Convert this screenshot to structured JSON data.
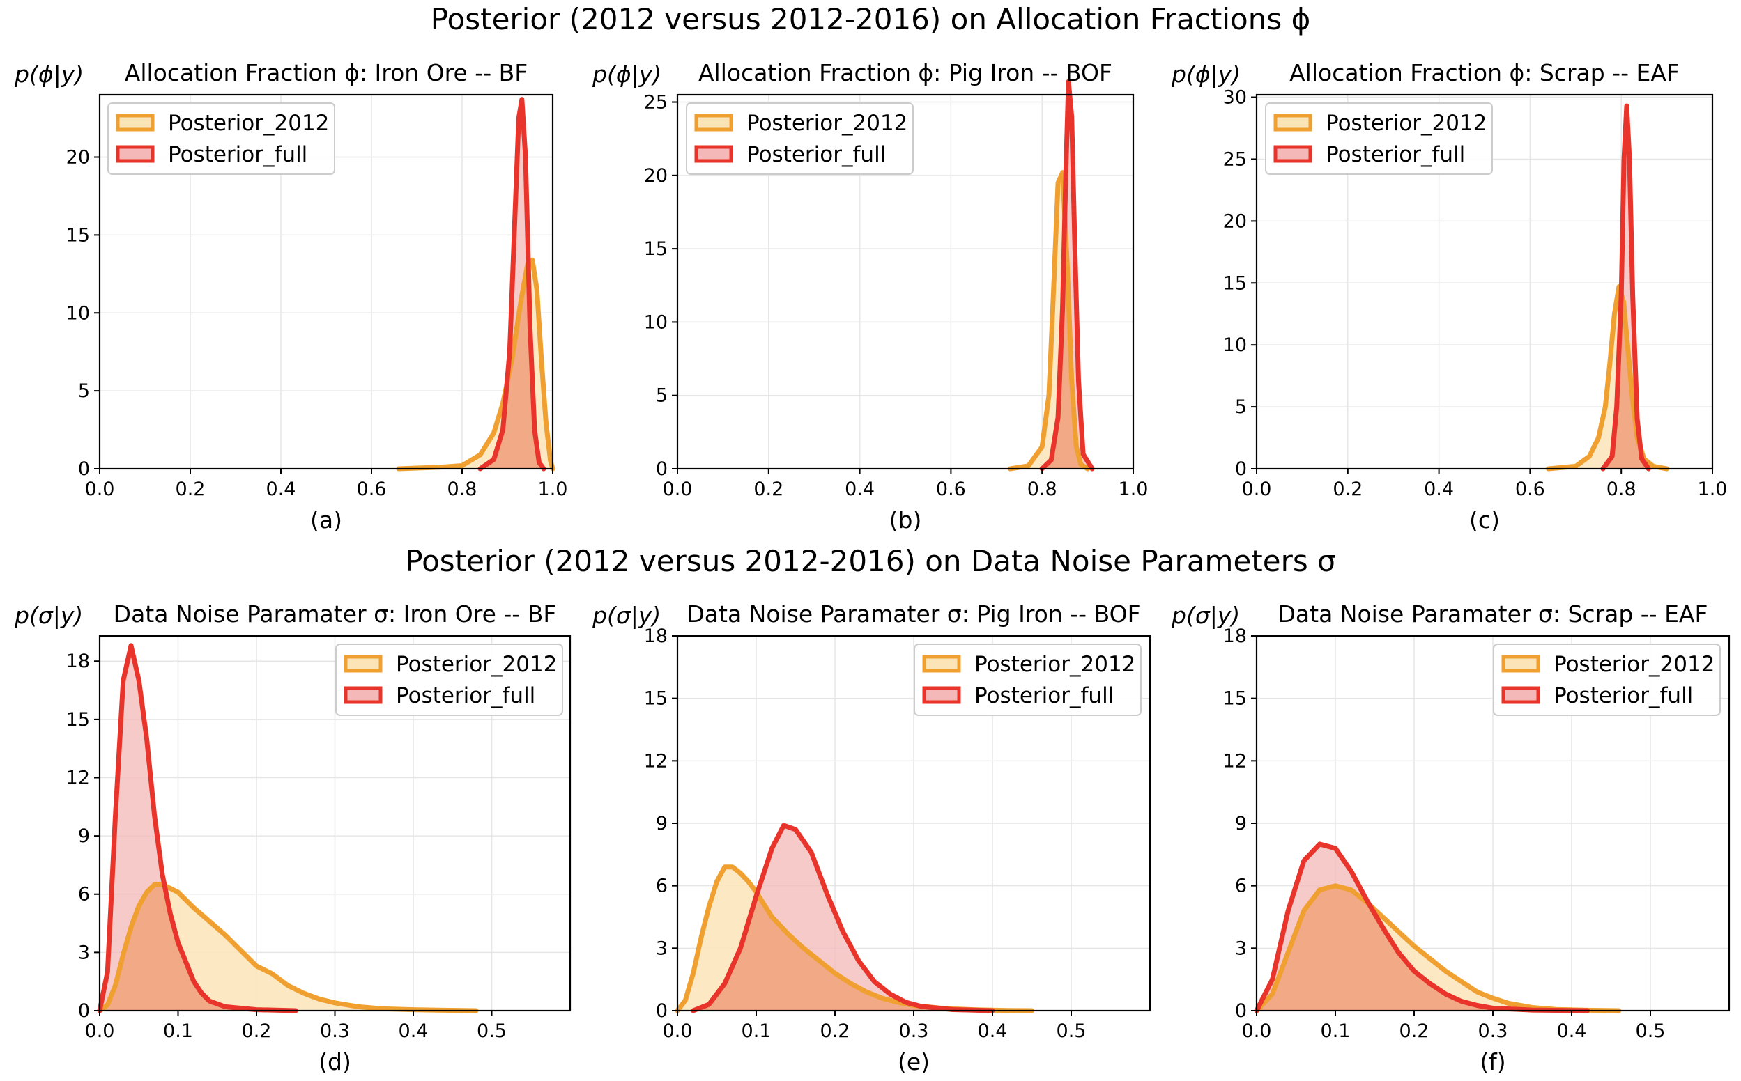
{
  "suptitles": {
    "top": "Posterior (2012 versus 2012-2016) on Allocation Fractions ϕ",
    "bottom": "Posterior (2012 versus 2012-2016) on Data Noise Parameters σ"
  },
  "colors": {
    "posterior_2012_line": "#f0a030",
    "posterior_2012_fill": "#fbe5b8",
    "posterior_full_line": "#e8342a",
    "posterior_full_fill": "#f4b8b8",
    "overlap_fill": "#f0a883"
  },
  "chart_data": [
    {
      "type": "area",
      "panel": "a",
      "title": "Allocation Fraction ϕ: Iron Ore -- BF",
      "ylabel": "p(ϕ|y)",
      "caption": "(a)",
      "xlim": [
        0.0,
        1.0
      ],
      "ylim": [
        0,
        24
      ],
      "xticks": [
        0.0,
        0.2,
        0.4,
        0.6,
        0.8,
        1.0
      ],
      "yticks": [
        0,
        5,
        10,
        15,
        20
      ],
      "xtick_labels": [
        "0.0",
        "0.2",
        "0.4",
        "0.6",
        "0.8",
        "1.0"
      ],
      "ytick_labels": [
        "0",
        "5",
        "10",
        "15",
        "20"
      ],
      "legend": "upper-left",
      "series": [
        {
          "name": "Posterior_2012",
          "x": [
            0.66,
            0.75,
            0.8,
            0.84,
            0.87,
            0.89,
            0.91,
            0.93,
            0.945,
            0.955,
            0.965,
            0.975,
            0.985,
            0.995,
            1.0
          ],
          "y": [
            0,
            0.1,
            0.2,
            0.9,
            2.3,
            4.2,
            7.0,
            10.8,
            13.2,
            13.4,
            11.5,
            7.0,
            3.0,
            0.5,
            0
          ]
        },
        {
          "name": "Posterior_full",
          "x": [
            0.84,
            0.87,
            0.89,
            0.905,
            0.915,
            0.925,
            0.932,
            0.94,
            0.95,
            0.96,
            0.97,
            0.98
          ],
          "y": [
            0,
            0.6,
            2.5,
            7.5,
            15.0,
            22.5,
            23.7,
            20.0,
            9.0,
            2.5,
            0.4,
            0
          ]
        }
      ]
    },
    {
      "type": "area",
      "panel": "b",
      "title": "Allocation Fraction ϕ: Pig Iron -- BOF",
      "ylabel": "p(ϕ|y)",
      "caption": "(b)",
      "xlim": [
        0.0,
        1.0
      ],
      "ylim": [
        0,
        25.5
      ],
      "xticks": [
        0.0,
        0.2,
        0.4,
        0.6,
        0.8,
        1.0
      ],
      "yticks": [
        0,
        5,
        10,
        15,
        20,
        25
      ],
      "xtick_labels": [
        "0.0",
        "0.2",
        "0.4",
        "0.6",
        "0.8",
        "1.0"
      ],
      "ytick_labels": [
        "0",
        "5",
        "10",
        "15",
        "20",
        "25"
      ],
      "legend": "upper-left",
      "series": [
        {
          "name": "Posterior_2012",
          "x": [
            0.73,
            0.77,
            0.8,
            0.815,
            0.825,
            0.835,
            0.845,
            0.855,
            0.865,
            0.875,
            0.885,
            0.9
          ],
          "y": [
            0,
            0.2,
            1.5,
            5.0,
            12.0,
            19.5,
            20.2,
            14.0,
            6.0,
            1.5,
            0.3,
            0
          ]
        },
        {
          "name": "Posterior_full",
          "x": [
            0.8,
            0.82,
            0.835,
            0.845,
            0.852,
            0.858,
            0.865,
            0.872,
            0.88,
            0.89,
            0.91
          ],
          "y": [
            0,
            0.6,
            3.5,
            11.0,
            20.0,
            26.4,
            24.0,
            15.0,
            6.0,
            1.0,
            0
          ]
        }
      ]
    },
    {
      "type": "area",
      "panel": "c",
      "title": "Allocation Fraction ϕ: Scrap -- EAF",
      "ylabel": "p(ϕ|y)",
      "caption": "(c)",
      "xlim": [
        0.0,
        1.0
      ],
      "ylim": [
        0,
        30.2
      ],
      "xticks": [
        0.0,
        0.2,
        0.4,
        0.6,
        0.8,
        1.0
      ],
      "yticks": [
        0,
        5,
        10,
        15,
        20,
        25,
        30
      ],
      "xtick_labels": [
        "0.0",
        "0.2",
        "0.4",
        "0.6",
        "0.8",
        "1.0"
      ],
      "ytick_labels": [
        "0",
        "5",
        "10",
        "15",
        "20",
        "25",
        "30"
      ],
      "legend": "upper-left",
      "series": [
        {
          "name": "Posterior_2012",
          "x": [
            0.64,
            0.7,
            0.73,
            0.75,
            0.765,
            0.775,
            0.785,
            0.795,
            0.805,
            0.815,
            0.825,
            0.835,
            0.85,
            0.87,
            0.9
          ],
          "y": [
            0,
            0.2,
            1.0,
            2.5,
            5.0,
            8.5,
            12.5,
            14.7,
            13.5,
            9.5,
            5.5,
            2.5,
            0.8,
            0.2,
            0
          ]
        },
        {
          "name": "Posterior_full",
          "x": [
            0.76,
            0.78,
            0.79,
            0.8,
            0.806,
            0.812,
            0.818,
            0.825,
            0.835,
            0.845,
            0.86
          ],
          "y": [
            0,
            1.0,
            5.0,
            14.0,
            25.0,
            29.3,
            25.0,
            14.0,
            4.0,
            0.8,
            0
          ]
        }
      ]
    },
    {
      "type": "area",
      "panel": "d",
      "title": "Data Noise Paramater σ: Iron Ore -- BF",
      "ylabel": "p(σ|y)",
      "caption": "(d)",
      "xlim": [
        0.0,
        0.6
      ],
      "ylim": [
        0,
        19.3
      ],
      "xticks": [
        0.0,
        0.1,
        0.2,
        0.3,
        0.4,
        0.5
      ],
      "yticks": [
        0,
        3,
        6,
        9,
        12,
        15,
        18
      ],
      "xtick_labels": [
        "0.0",
        "0.1",
        "0.2",
        "0.3",
        "0.4",
        "0.5"
      ],
      "ytick_labels": [
        "0",
        "3",
        "6",
        "9",
        "12",
        "15",
        "18"
      ],
      "legend": "upper-right",
      "series": [
        {
          "name": "Posterior_2012",
          "x": [
            0.0,
            0.01,
            0.02,
            0.03,
            0.04,
            0.05,
            0.06,
            0.07,
            0.08,
            0.1,
            0.12,
            0.14,
            0.16,
            0.18,
            0.2,
            0.22,
            0.24,
            0.26,
            0.28,
            0.3,
            0.33,
            0.36,
            0.4,
            0.44,
            0.48
          ],
          "y": [
            0,
            0.3,
            1.3,
            2.9,
            4.3,
            5.4,
            6.1,
            6.5,
            6.5,
            6.1,
            5.3,
            4.6,
            3.9,
            3.1,
            2.3,
            1.9,
            1.3,
            0.9,
            0.6,
            0.4,
            0.2,
            0.1,
            0.05,
            0.02,
            0
          ]
        },
        {
          "name": "Posterior_full",
          "x": [
            0.0,
            0.01,
            0.02,
            0.03,
            0.04,
            0.05,
            0.06,
            0.07,
            0.08,
            0.09,
            0.1,
            0.11,
            0.12,
            0.13,
            0.14,
            0.16,
            0.2,
            0.25
          ],
          "y": [
            0,
            2.0,
            10.0,
            17.0,
            18.8,
            17.0,
            14.0,
            10.0,
            7.0,
            5.0,
            3.5,
            2.5,
            1.5,
            0.9,
            0.5,
            0.2,
            0.05,
            0
          ]
        }
      ]
    },
    {
      "type": "area",
      "panel": "e",
      "title": "Data Noise Paramater σ: Pig Iron -- BOF",
      "ylabel": "p(σ|y)",
      "caption": "(e)",
      "xlim": [
        0.0,
        0.6
      ],
      "ylim": [
        0,
        18
      ],
      "xticks": [
        0.0,
        0.1,
        0.2,
        0.3,
        0.4,
        0.5
      ],
      "yticks": [
        0,
        3,
        6,
        9,
        12,
        15,
        18
      ],
      "xtick_labels": [
        "0.0",
        "0.1",
        "0.2",
        "0.3",
        "0.4",
        "0.5"
      ],
      "ytick_labels": [
        "0",
        "3",
        "6",
        "9",
        "12",
        "15",
        "18"
      ],
      "legend": "upper-right",
      "series": [
        {
          "name": "Posterior_2012",
          "x": [
            0.0,
            0.01,
            0.02,
            0.03,
            0.04,
            0.05,
            0.06,
            0.07,
            0.08,
            0.09,
            0.1,
            0.11,
            0.12,
            0.14,
            0.16,
            0.18,
            0.2,
            0.22,
            0.24,
            0.26,
            0.28,
            0.3,
            0.34,
            0.38,
            0.42,
            0.45
          ],
          "y": [
            0,
            0.5,
            1.8,
            3.5,
            5.0,
            6.2,
            6.9,
            6.9,
            6.6,
            6.2,
            5.7,
            5.1,
            4.5,
            3.7,
            3.0,
            2.4,
            1.8,
            1.3,
            0.9,
            0.6,
            0.4,
            0.25,
            0.1,
            0.04,
            0.01,
            0
          ]
        },
        {
          "name": "Posterior_full",
          "x": [
            0.02,
            0.04,
            0.06,
            0.08,
            0.1,
            0.12,
            0.135,
            0.15,
            0.17,
            0.19,
            0.21,
            0.23,
            0.25,
            0.27,
            0.29,
            0.31,
            0.35,
            0.4
          ],
          "y": [
            0,
            0.3,
            1.3,
            3.0,
            5.5,
            7.8,
            8.9,
            8.7,
            7.6,
            5.6,
            3.8,
            2.4,
            1.4,
            0.8,
            0.4,
            0.2,
            0.05,
            0
          ]
        }
      ]
    },
    {
      "type": "area",
      "panel": "f",
      "title": "Data Noise Paramater σ: Scrap -- EAF",
      "ylabel": "p(σ|y)",
      "caption": "(f)",
      "xlim": [
        0.0,
        0.6
      ],
      "ylim": [
        0,
        18
      ],
      "xticks": [
        0.0,
        0.1,
        0.2,
        0.3,
        0.4,
        0.5
      ],
      "yticks": [
        0,
        3,
        6,
        9,
        12,
        15,
        18
      ],
      "xtick_labels": [
        "0.0",
        "0.1",
        "0.2",
        "0.3",
        "0.4",
        "0.5"
      ],
      "ytick_labels": [
        "0",
        "3",
        "6",
        "9",
        "12",
        "15",
        "18"
      ],
      "legend": "upper-right",
      "series": [
        {
          "name": "Posterior_2012",
          "x": [
            0.0,
            0.02,
            0.04,
            0.06,
            0.08,
            0.1,
            0.12,
            0.14,
            0.16,
            0.18,
            0.2,
            0.22,
            0.24,
            0.26,
            0.28,
            0.3,
            0.32,
            0.35,
            0.38,
            0.42,
            0.46
          ],
          "y": [
            0,
            0.8,
            2.8,
            4.8,
            5.8,
            6.0,
            5.8,
            5.2,
            4.5,
            3.8,
            3.1,
            2.5,
            1.9,
            1.4,
            0.9,
            0.6,
            0.35,
            0.15,
            0.06,
            0.02,
            0
          ]
        },
        {
          "name": "Posterior_full",
          "x": [
            0.0,
            0.02,
            0.04,
            0.06,
            0.08,
            0.1,
            0.12,
            0.14,
            0.16,
            0.18,
            0.2,
            0.22,
            0.24,
            0.26,
            0.28,
            0.3,
            0.35,
            0.42
          ],
          "y": [
            0,
            1.5,
            4.8,
            7.2,
            8.0,
            7.8,
            6.7,
            5.3,
            4.0,
            2.8,
            1.9,
            1.3,
            0.8,
            0.45,
            0.25,
            0.12,
            0.03,
            0
          ]
        }
      ]
    }
  ]
}
